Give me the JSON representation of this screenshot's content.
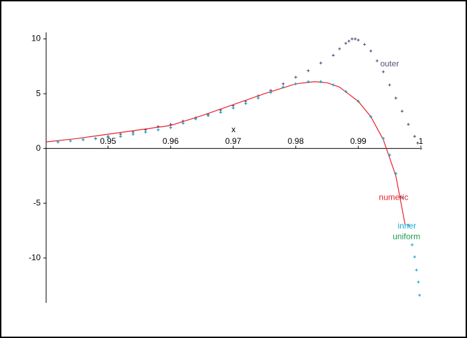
{
  "chart_data": {
    "type": "scatter",
    "x_label": "x",
    "xlim": [
      0.9401,
      1.0
    ],
    "ylim": [
      -14.1,
      10.6
    ],
    "xticks": [
      0.95,
      0.96,
      0.97,
      0.98,
      0.99,
      1
    ],
    "yticks": [
      -10,
      -5,
      0,
      5,
      10
    ],
    "series": [
      {
        "name": "outer",
        "color": "#5a4f7a",
        "mode": "markers",
        "x": [
          0.942,
          0.944,
          0.946,
          0.948,
          0.95,
          0.952,
          0.954,
          0.956,
          0.958,
          0.96,
          0.962,
          0.964,
          0.966,
          0.968,
          0.97,
          0.972,
          0.974,
          0.976,
          0.978,
          0.98,
          0.982,
          0.984,
          0.986,
          0.987,
          0.988,
          0.9885,
          0.989,
          0.9895,
          0.99,
          0.991,
          0.992,
          0.993,
          0.994,
          0.995,
          0.996,
          0.997,
          0.998,
          0.999,
          0.9995,
          1.0
        ],
        "values": [
          0.6,
          0.7,
          0.8,
          0.9,
          1.1,
          1.3,
          1.5,
          1.7,
          2.0,
          2.2,
          2.5,
          2.8,
          3.1,
          3.5,
          3.9,
          4.3,
          4.8,
          5.3,
          5.9,
          6.5,
          7.1,
          7.8,
          8.5,
          9.1,
          9.6,
          9.8,
          10,
          10,
          9.9,
          9.5,
          8.9,
          8.0,
          7.0,
          5.8,
          4.6,
          3.4,
          2.2,
          1.1,
          0.5,
          0
        ]
      },
      {
        "name": "numeric",
        "color": "#e8202a",
        "mode": "line",
        "x": [
          0.9401,
          0.945,
          0.95,
          0.955,
          0.96,
          0.965,
          0.97,
          0.975,
          0.98,
          0.983,
          0.985,
          0.987,
          0.99,
          0.992,
          0.994,
          0.996,
          0.9975
        ],
        "values": [
          0.6,
          0.9,
          1.3,
          1.7,
          2.1,
          3.0,
          4.0,
          5.0,
          5.9,
          6.1,
          6.0,
          5.6,
          4.3,
          2.9,
          0.8,
          -2.5,
          -7.0
        ]
      },
      {
        "name": "uniform",
        "color": "#1a9a50",
        "mode": "markers",
        "x": [
          0.942,
          0.944,
          0.946,
          0.948,
          0.95,
          0.952,
          0.954,
          0.956,
          0.958,
          0.96,
          0.962,
          0.964,
          0.966,
          0.968,
          0.97,
          0.972,
          0.974,
          0.976,
          0.978,
          0.98,
          0.982,
          0.984,
          0.986,
          0.988,
          0.99,
          0.992,
          0.994,
          0.995,
          0.996,
          0.997,
          0.998
        ],
        "values": [
          0.6,
          0.7,
          0.8,
          0.9,
          1.0,
          1.1,
          1.3,
          1.5,
          1.7,
          1.9,
          2.3,
          2.7,
          3.0,
          3.3,
          3.7,
          4.1,
          4.6,
          5.1,
          5.6,
          5.9,
          6.1,
          6.1,
          5.8,
          5.2,
          4.3,
          2.9,
          0.9,
          -0.6,
          -2.3,
          -4.5,
          -7.0
        ]
      },
      {
        "name": "inner",
        "color": "#1aa8d0",
        "mode": "markers",
        "x": [
          0.942,
          0.944,
          0.946,
          0.948,
          0.95,
          0.952,
          0.954,
          0.956,
          0.958,
          0.96,
          0.962,
          0.964,
          0.966,
          0.968,
          0.97,
          0.972,
          0.974,
          0.976,
          0.978,
          0.98,
          0.982,
          0.984,
          0.986,
          0.988,
          0.99,
          0.992,
          0.994,
          0.995,
          0.996,
          0.997,
          0.998,
          0.9986,
          0.999,
          0.9993,
          0.9996,
          0.9998
        ],
        "values": [
          0.6,
          0.7,
          0.8,
          0.9,
          1.0,
          1.1,
          1.3,
          1.5,
          1.7,
          1.9,
          2.3,
          2.7,
          3.0,
          3.3,
          3.7,
          4.1,
          4.6,
          5.1,
          5.6,
          5.9,
          6.1,
          6.1,
          5.8,
          5.2,
          4.3,
          2.9,
          0.9,
          -0.6,
          -2.3,
          -4.5,
          -7.0,
          -8.8,
          -9.9,
          -11.1,
          -12.2,
          -13.4
        ]
      }
    ],
    "annotations": [
      {
        "text": "outer",
        "x": 0.9935,
        "y": 7.7,
        "color": "#5a4f7a"
      },
      {
        "text": "numeric",
        "x": 0.9933,
        "y": -4.5,
        "color": "#e8202a"
      },
      {
        "text": "inner",
        "x": 0.9963,
        "y": -7.1,
        "color": "#1aa8d0"
      },
      {
        "text": "uniform",
        "x": 0.9955,
        "y": -8.1,
        "color": "#1a9a50"
      }
    ]
  }
}
